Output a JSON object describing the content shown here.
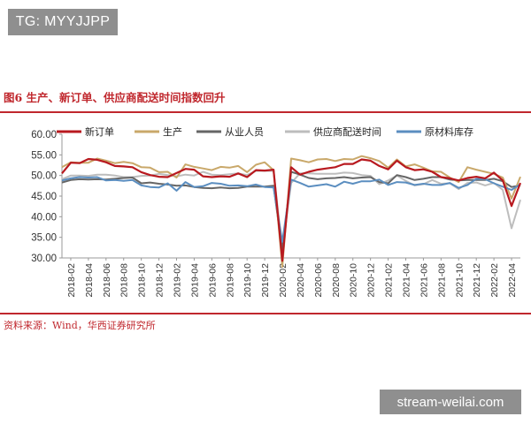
{
  "watermark_top": "TG: MYYJJPP",
  "figure_title": "图6 生产、新订单、供应商配送时间指数回升",
  "source": "资料来源：Wind，华西证券研究所",
  "watermark_bottom": "stream-weilai.com",
  "chart_data": {
    "type": "line",
    "ylim": [
      30,
      60
    ],
    "y_ticks": [
      "30.00",
      "35.00",
      "40.00",
      "45.00",
      "50.00",
      "55.00",
      "60.00"
    ],
    "x": [
      "2018-01",
      "2018-02",
      "2018-03",
      "2018-04",
      "2018-05",
      "2018-06",
      "2018-07",
      "2018-08",
      "2018-09",
      "2018-10",
      "2018-11",
      "2018-12",
      "2019-01",
      "2019-02",
      "2019-03",
      "2019-04",
      "2019-05",
      "2019-06",
      "2019-07",
      "2019-08",
      "2019-09",
      "2019-10",
      "2019-11",
      "2019-12",
      "2020-01",
      "2020-02",
      "2020-03",
      "2020-04",
      "2020-05",
      "2020-06",
      "2020-07",
      "2020-08",
      "2020-09",
      "2020-10",
      "2020-11",
      "2020-12",
      "2021-01",
      "2021-02",
      "2021-03",
      "2021-04",
      "2021-05",
      "2021-06",
      "2021-07",
      "2021-08",
      "2021-09",
      "2021-10",
      "2021-11",
      "2021-12",
      "2022-01",
      "2022-02",
      "2022-03",
      "2022-04",
      "2022-05"
    ],
    "x_tick_labels": [
      "2018-02",
      "2018-04",
      "2018-06",
      "2018-08",
      "2018-10",
      "2018-12",
      "2019-02",
      "2019-04",
      "2019-06",
      "2019-08",
      "2019-10",
      "2019-12",
      "2020-02",
      "2020-04",
      "2020-06",
      "2020-08",
      "2020-10",
      "2020-12",
      "2021-02",
      "2021-04",
      "2021-06",
      "2021-08",
      "2021-10",
      "2021-12",
      "2022-02",
      "2022-04"
    ],
    "legend_position": "top",
    "grid": false,
    "series": [
      {
        "name": "新订单",
        "color": "#b8191f",
        "width": 2.2,
        "values": [
          50.5,
          53.1,
          53.0,
          54.0,
          53.8,
          53.2,
          52.3,
          52.2,
          52.0,
          50.8,
          50.1,
          49.7,
          49.6,
          50.6,
          51.6,
          51.4,
          49.8,
          49.6,
          49.8,
          49.7,
          50.5,
          49.6,
          51.3,
          51.2,
          51.4,
          29.3,
          52.0,
          50.2,
          50.9,
          51.4,
          51.7,
          52.0,
          52.8,
          52.8,
          53.9,
          53.6,
          52.3,
          51.5,
          53.6,
          52.0,
          51.3,
          51.5,
          50.9,
          49.6,
          49.3,
          48.8,
          49.4,
          49.7,
          49.3,
          50.7,
          48.8,
          42.6,
          48.2
        ]
      },
      {
        "name": "生产",
        "color": "#c9a86a",
        "width": 2.0,
        "values": [
          52.0,
          53.2,
          53.1,
          53.1,
          54.1,
          53.6,
          53.0,
          53.3,
          53.0,
          52.0,
          51.9,
          50.8,
          50.9,
          49.5,
          52.7,
          52.1,
          51.7,
          51.3,
          52.1,
          51.9,
          52.3,
          50.8,
          52.6,
          53.2,
          51.3,
          27.8,
          54.1,
          53.7,
          53.2,
          53.9,
          54.0,
          53.5,
          54.0,
          53.9,
          54.7,
          54.2,
          53.5,
          51.9,
          53.9,
          52.2,
          52.7,
          51.9,
          51.0,
          50.9,
          49.5,
          48.4,
          52.0,
          51.4,
          50.9,
          50.4,
          49.5,
          44.4,
          49.7
        ]
      },
      {
        "name": "从业人员",
        "color": "#666666",
        "width": 2.0,
        "values": [
          48.3,
          48.9,
          49.1,
          49.0,
          49.1,
          49.0,
          49.2,
          49.4,
          49.5,
          48.1,
          48.3,
          48.0,
          47.8,
          47.5,
          47.6,
          47.2,
          47.0,
          46.9,
          47.1,
          46.9,
          47.0,
          47.3,
          47.3,
          47.3,
          47.5,
          31.8,
          50.9,
          50.2,
          49.4,
          49.1,
          49.3,
          49.4,
          49.6,
          49.3,
          49.5,
          49.6,
          48.4,
          48.1,
          50.1,
          49.6,
          48.9,
          49.2,
          49.6,
          49.6,
          49.0,
          48.8,
          48.9,
          48.9,
          48.9,
          49.2,
          48.6,
          47.2,
          47.6
        ]
      },
      {
        "name": "供应商配送时间",
        "color": "#bdbdbd",
        "width": 2.0,
        "values": [
          49.1,
          50.0,
          50.0,
          49.9,
          50.2,
          50.2,
          50.0,
          49.6,
          49.6,
          49.9,
          50.0,
          50.4,
          50.1,
          49.8,
          50.2,
          50.0,
          50.9,
          50.2,
          50.1,
          50.3,
          50.5,
          50.1,
          51.1,
          51.1,
          51.1,
          32.1,
          48.2,
          50.5,
          50.5,
          50.4,
          50.4,
          50.4,
          50.7,
          50.6,
          50.1,
          49.9,
          47.9,
          48.8,
          50.0,
          48.7,
          47.6,
          47.9,
          48.9,
          48.0,
          48.1,
          46.7,
          48.2,
          48.3,
          47.6,
          48.2,
          46.5,
          37.2,
          44.1
        ]
      },
      {
        "name": "原材料库存",
        "color": "#5b8ec0",
        "width": 2.0,
        "values": [
          48.8,
          49.3,
          49.6,
          49.5,
          49.6,
          48.8,
          48.9,
          48.7,
          48.9,
          47.6,
          47.2,
          47.1,
          48.1,
          46.3,
          48.4,
          47.2,
          47.4,
          48.2,
          48.0,
          47.5,
          47.6,
          47.4,
          47.8,
          47.2,
          47.1,
          33.9,
          49.0,
          48.2,
          47.3,
          47.6,
          47.9,
          47.3,
          48.5,
          48.0,
          48.6,
          48.6,
          49.0,
          47.7,
          48.4,
          48.3,
          47.7,
          48.0,
          47.7,
          47.7,
          48.2,
          47.0,
          47.7,
          49.2,
          49.1,
          48.1,
          47.3,
          46.5,
          47.9
        ]
      }
    ]
  }
}
